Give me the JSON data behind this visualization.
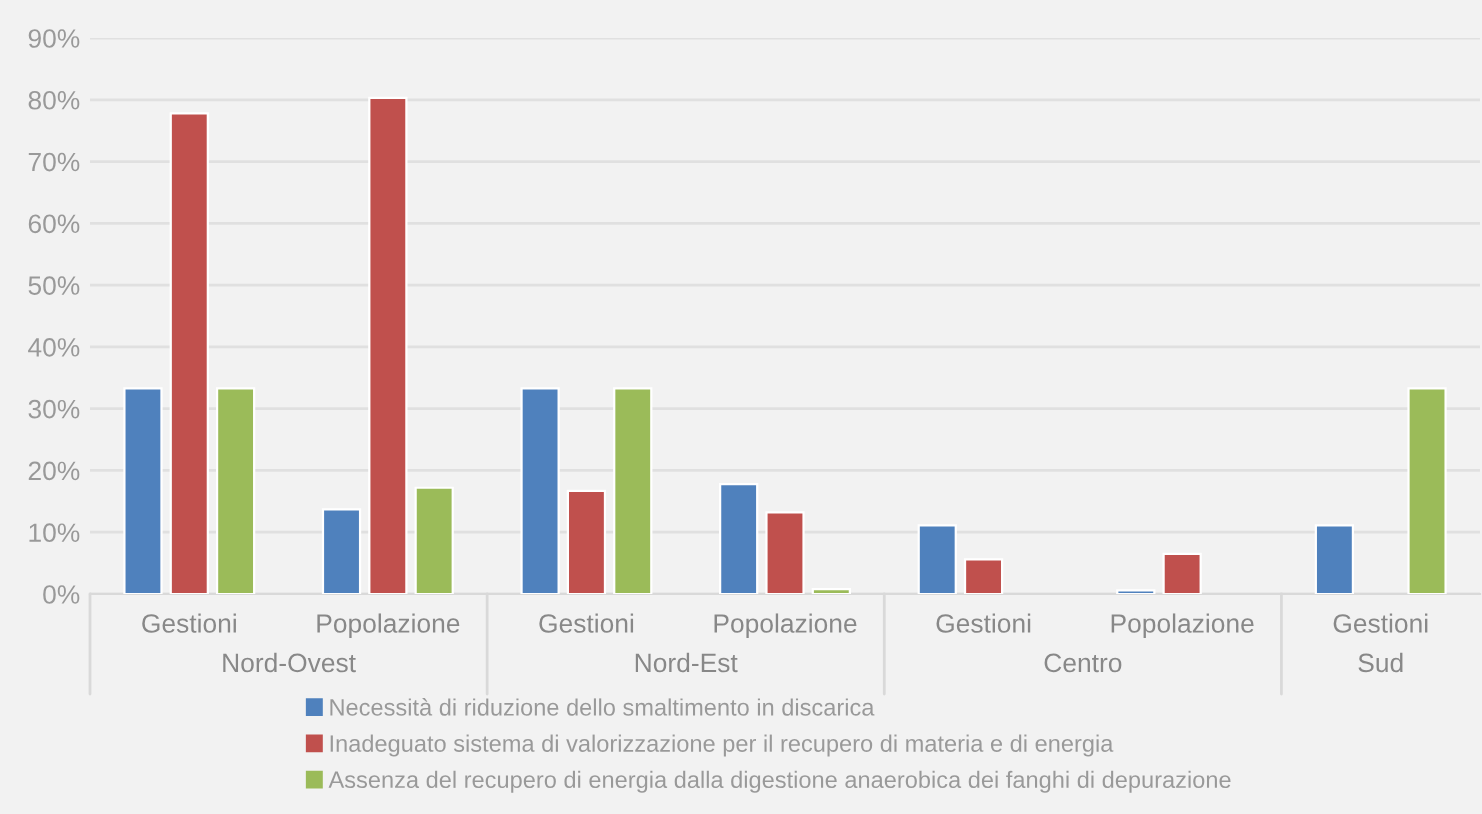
{
  "chart_data": {
    "type": "bar",
    "categories": [
      "Gestioni",
      "Popolazione",
      "Gestioni",
      "Popolazione",
      "Gestioni",
      "Popolazione",
      "Gestioni"
    ],
    "series": [
      {
        "name": "Necessità di riduzione dello smaltimento in discarica",
        "color": "#4f81bd",
        "values": [
          33.3,
          13.7,
          33.3,
          17.8,
          11.1,
          0.6,
          11.1
        ]
      },
      {
        "name": "Inadeguato sistema di valorizzazione per il recupero di materia e di energia",
        "color": "#c0504d",
        "values": [
          77.8,
          80.3,
          16.7,
          13.2,
          5.6,
          6.5,
          null
        ]
      },
      {
        "name": "Assenza del recupero di energia dalla digestione anaerobica dei fanghi di depurazione",
        "color": "#9bbb59",
        "values": [
          33.3,
          17.2,
          33.3,
          0.8,
          null,
          null,
          33.3
        ]
      }
    ],
    "annotations": [
      "Nord-Ovest",
      "Nord-Est",
      "Centro",
      "Sud"
    ],
    "ylim": [
      0,
      90
    ],
    "yticks": [
      {
        "value": 0,
        "label": "0%"
      },
      {
        "value": 10,
        "label": "10%"
      },
      {
        "value": 20,
        "label": "20%"
      },
      {
        "value": 30,
        "label": "30%"
      },
      {
        "value": 40,
        "label": "40%"
      },
      {
        "value": 50,
        "label": "50%"
      },
      {
        "value": 60,
        "label": "60%"
      },
      {
        "value": 70,
        "label": "70%"
      },
      {
        "value": 80,
        "label": "80%"
      },
      {
        "value": 90,
        "label": "90%"
      }
    ],
    "grid": "y",
    "legend": "bottom"
  }
}
